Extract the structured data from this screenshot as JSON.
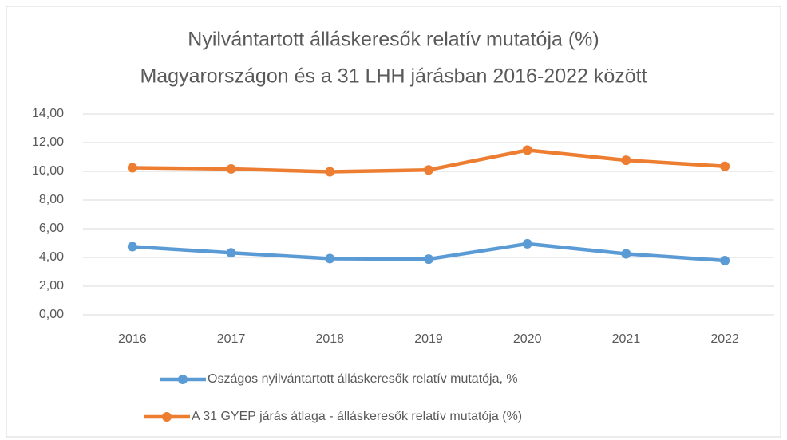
{
  "chart_data": {
    "type": "line",
    "title": [
      "Nyilvántartott álláskeresők relatív mutatója (%)",
      "Magyarországon és a 31 LHH járásban 2016-2022 között"
    ],
    "categories": [
      "2016",
      "2017",
      "2018",
      "2019",
      "2020",
      "2021",
      "2022"
    ],
    "series": [
      {
        "name": "Oszágos nyilvántartott álláskeresők relatív mutatója, %",
        "color": "#5b9bd5",
        "values": [
          4.75,
          4.32,
          3.92,
          3.88,
          4.95,
          4.25,
          3.78
        ]
      },
      {
        "name": "A 31 GYEP járás átlaga - álláskeresők relatív mutatója (%)",
        "color": "#ed7d31",
        "values": [
          10.25,
          10.17,
          9.97,
          10.1,
          11.48,
          10.77,
          10.35
        ]
      }
    ],
    "ylim": [
      0,
      14
    ],
    "yticks": [
      {
        "value": 0,
        "label": "0,00"
      },
      {
        "value": 2,
        "label": "2,00"
      },
      {
        "value": 4,
        "label": "4,00"
      },
      {
        "value": 6,
        "label": "6,00"
      },
      {
        "value": 8,
        "label": "8,00"
      },
      {
        "value": 10,
        "label": "10,00"
      },
      {
        "value": 12,
        "label": "12,00"
      },
      {
        "value": 14,
        "label": "14,00"
      }
    ],
    "grid": true,
    "legend": "bottom"
  }
}
